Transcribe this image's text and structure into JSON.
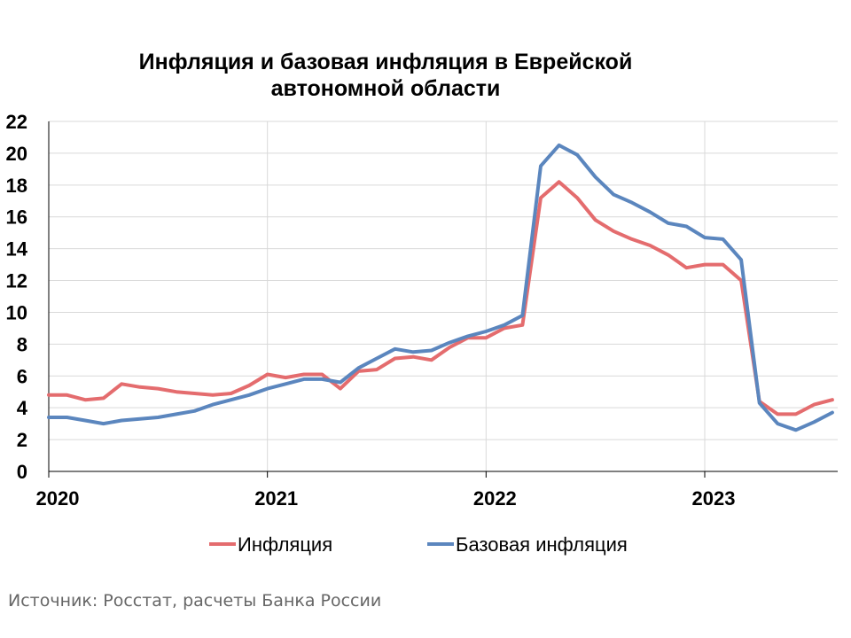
{
  "chart_data": {
    "type": "line",
    "title_lines": [
      "Инфляция и базовая инфляция в Еврейской",
      "автономной области"
    ],
    "ylim": [
      0,
      22
    ],
    "yticks": [
      0,
      2,
      4,
      6,
      8,
      10,
      12,
      14,
      16,
      18,
      20,
      22
    ],
    "x_tick_labels": [
      "2020",
      "2021",
      "2022",
      "2023"
    ],
    "x_tick_months": [
      0,
      12,
      24,
      36
    ],
    "x_start": "2020-01",
    "grid": true,
    "legend_position": "bottom",
    "series": [
      {
        "name": "Инфляция",
        "color": "#E46C6E",
        "values": [
          4.8,
          4.8,
          4.5,
          4.6,
          5.5,
          5.3,
          5.2,
          5.0,
          4.9,
          4.8,
          4.9,
          5.4,
          6.1,
          5.9,
          6.1,
          6.1,
          5.2,
          6.3,
          6.4,
          7.1,
          7.2,
          7.0,
          7.8,
          8.4,
          8.4,
          9.0,
          9.2,
          17.2,
          18.2,
          17.2,
          15.8,
          15.1,
          14.6,
          14.2,
          13.6,
          12.8,
          13.0,
          13.0,
          12.0,
          4.4,
          3.6,
          3.6,
          4.2,
          4.5
        ]
      },
      {
        "name": "Базовая инфляция",
        "color": "#5B86BE",
        "values": [
          3.4,
          3.4,
          3.2,
          3.0,
          3.2,
          3.3,
          3.4,
          3.6,
          3.8,
          4.2,
          4.5,
          4.8,
          5.2,
          5.5,
          5.8,
          5.8,
          5.6,
          6.5,
          7.1,
          7.7,
          7.5,
          7.6,
          8.1,
          8.5,
          8.8,
          9.2,
          9.8,
          19.2,
          20.5,
          19.9,
          18.5,
          17.4,
          16.9,
          16.3,
          15.6,
          15.4,
          14.7,
          14.6,
          13.3,
          4.3,
          3.0,
          2.6,
          3.1,
          3.7
        ]
      }
    ]
  },
  "source": "Источник: Росстат, расчеты Банка России"
}
